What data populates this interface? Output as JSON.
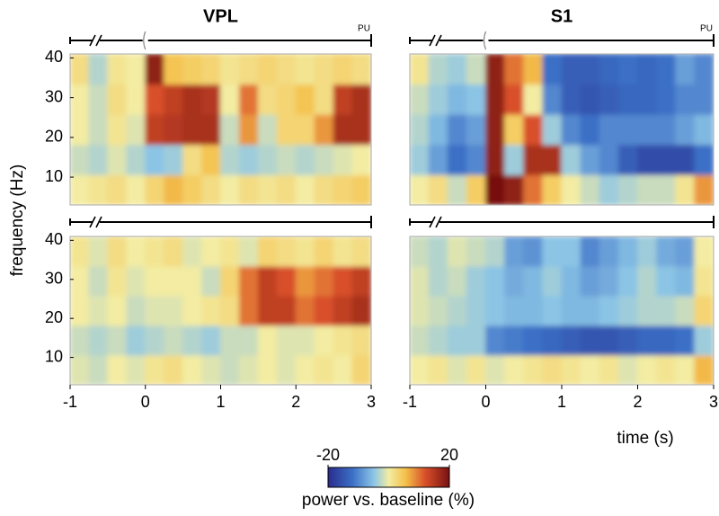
{
  "chart_data": [
    {
      "type": "heatmap",
      "title": "VPL",
      "marker_label": "PU",
      "x": [
        -0.875,
        -0.625,
        -0.375,
        -0.125,
        0.125,
        0.375,
        0.625,
        0.875,
        1.125,
        1.375,
        1.625,
        1.875,
        2.125,
        2.375,
        2.625,
        2.875
      ],
      "y": [
        6.8,
        14.4,
        22,
        29.6,
        37.2
      ],
      "z": [
        [
          0,
          1,
          2,
          0,
          3,
          6,
          4,
          2,
          0,
          2,
          1,
          2,
          0,
          2,
          3,
          4
        ],
        [
          -2,
          -3,
          -1,
          -3,
          -5,
          -4,
          2,
          5,
          -3,
          -4,
          -3,
          -2,
          -3,
          -2,
          -1,
          0
        ],
        [
          0,
          -2,
          1,
          -1,
          14,
          15,
          16,
          16,
          -2,
          8,
          -2,
          3,
          3,
          8,
          16,
          16
        ],
        [
          0,
          -2,
          2,
          0,
          12,
          14,
          16,
          15,
          0,
          10,
          2,
          3,
          5,
          2,
          14,
          16
        ],
        [
          2,
          -3,
          1,
          0,
          18,
          5,
          4,
          3,
          1,
          2,
          3,
          2,
          1,
          2,
          3,
          2
        ]
      ],
      "xlim": [
        -1,
        3
      ],
      "ylim": [
        3,
        41
      ],
      "yticks": [
        10,
        20,
        30,
        40
      ]
    },
    {
      "type": "heatmap",
      "title": "S1",
      "marker_label": "PU",
      "x": [
        -0.875,
        -0.625,
        -0.375,
        -0.125,
        0.125,
        0.375,
        0.625,
        0.875,
        1.125,
        1.375,
        1.625,
        1.875,
        2.125,
        2.375,
        2.625,
        2.875
      ],
      "y": [
        6.8,
        14.4,
        22,
        29.6,
        37.2
      ],
      "z": [
        [
          0,
          2,
          -2,
          4,
          20,
          18,
          10,
          4,
          0,
          -2,
          -4,
          -3,
          -2,
          -2,
          1,
          8
        ],
        [
          -4,
          -8,
          -12,
          -10,
          18,
          -4,
          16,
          16,
          -4,
          -8,
          -10,
          -14,
          -16,
          -16,
          -16,
          -12
        ],
        [
          -3,
          -6,
          -10,
          -8,
          18,
          4,
          12,
          -4,
          -10,
          -12,
          -10,
          -10,
          -10,
          -10,
          -8,
          -6
        ],
        [
          -2,
          -4,
          -6,
          -5,
          18,
          12,
          0,
          -10,
          -14,
          -15,
          -14,
          -13,
          -13,
          -12,
          -10,
          -10
        ],
        [
          1,
          -3,
          -4,
          -2,
          18,
          10,
          6,
          -12,
          -14,
          -14,
          -13,
          -12,
          -13,
          -12,
          -8,
          -10
        ]
      ],
      "xlim": [
        -1,
        3
      ],
      "ylim": [
        3,
        41
      ]
    },
    {
      "type": "heatmap",
      "x": [
        -0.875,
        -0.625,
        -0.375,
        -0.125,
        0.125,
        0.375,
        0.625,
        0.875,
        1.125,
        1.375,
        1.625,
        1.875,
        2.125,
        2.375,
        2.625,
        2.875
      ],
      "y": [
        6.8,
        14.4,
        22,
        29.6,
        37.2
      ],
      "z": [
        [
          -1,
          -2,
          0,
          -1,
          1,
          2,
          0,
          -1,
          -2,
          -1,
          0,
          -1,
          0,
          1,
          0,
          3
        ],
        [
          -2,
          -3,
          -2,
          -4,
          -3,
          -2,
          -3,
          -4,
          -2,
          -2,
          0,
          -1,
          -1,
          0,
          1,
          2
        ],
        [
          0,
          -1,
          0,
          -2,
          -1,
          -1,
          0,
          1,
          2,
          10,
          14,
          14,
          10,
          12,
          14,
          16
        ],
        [
          0,
          -2,
          1,
          -1,
          0,
          0,
          0,
          -2,
          3,
          10,
          14,
          12,
          8,
          10,
          12,
          14
        ],
        [
          1,
          -1,
          2,
          0,
          1,
          2,
          -1,
          0,
          1,
          -1,
          3,
          2,
          1,
          3,
          1,
          2
        ]
      ],
      "xlim": [
        -1,
        3
      ],
      "xticks": [
        -1,
        0,
        1,
        2,
        3
      ],
      "ylim": [
        3,
        41
      ],
      "yticks": [
        10,
        20,
        30,
        40
      ]
    },
    {
      "type": "heatmap",
      "x": [
        -0.875,
        -0.625,
        -0.375,
        -0.125,
        0.125,
        0.375,
        0.625,
        0.875,
        1.125,
        1.375,
        1.625,
        1.875,
        2.125,
        2.375,
        2.625,
        2.875
      ],
      "y": [
        6.8,
        14.4,
        22,
        29.6,
        37.2
      ],
      "z": [
        [
          0,
          1,
          -1,
          1,
          -1,
          0,
          1,
          2,
          1,
          0,
          1,
          -1,
          0,
          1,
          0,
          6
        ],
        [
          -2,
          -3,
          -4,
          -4,
          -10,
          -11,
          -12,
          -13,
          -14,
          -15,
          -15,
          -14,
          -13,
          -13,
          -12,
          -4
        ],
        [
          -1,
          -2,
          -3,
          -4,
          -5,
          -6,
          -6,
          -5,
          -6,
          -6,
          -5,
          -4,
          -3,
          -3,
          -2,
          3
        ],
        [
          -1,
          -3,
          -2,
          -4,
          -5,
          -7,
          -6,
          -4,
          -6,
          -8,
          -7,
          -5,
          -3,
          -5,
          -6,
          1
        ],
        [
          -2,
          -3,
          -1,
          -2,
          -3,
          -8,
          -9,
          -5,
          -5,
          -10,
          -8,
          -6,
          -4,
          -7,
          -8,
          0
        ]
      ],
      "xlim": [
        -1,
        3
      ],
      "xticks": [
        -1,
        0,
        1,
        2,
        3
      ],
      "ylim": [
        3,
        41
      ]
    }
  ],
  "figure": {
    "ylabel": "frequency (Hz)",
    "xlabel": "time (s)",
    "colorbar": {
      "label": "power vs. baseline (%)",
      "clim": [
        -20,
        20
      ],
      "ticks": [
        -20,
        20
      ]
    }
  }
}
